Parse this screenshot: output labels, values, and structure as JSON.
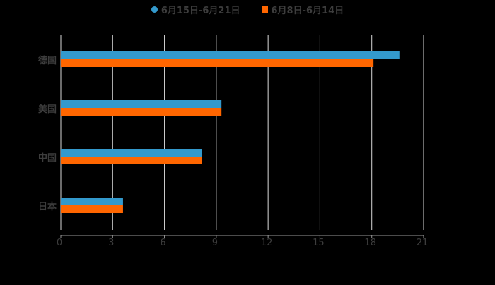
{
  "chart_data": {
    "type": "bar",
    "orientation": "horizontal",
    "title": "",
    "xlabel": "",
    "ylabel": "",
    "categories": [
      "德国",
      "美国",
      "中国",
      "日本"
    ],
    "series": [
      {
        "name": "6月15日-6月21日",
        "color": "#3399cc",
        "values": [
          19.6,
          9.3,
          8.15,
          3.6
        ]
      },
      {
        "name": "6月8日-6月14日",
        "color": "#ff6600",
        "values": [
          18.1,
          9.3,
          8.15,
          3.6
        ]
      }
    ],
    "xlim": [
      0,
      21
    ],
    "xticks": [
      "0",
      "3",
      "6",
      "9",
      "12",
      "15",
      "18",
      "21"
    ],
    "grid": true,
    "legend_position": "top"
  },
  "legend": {
    "items": [
      {
        "label": "6月15日-6月21日",
        "color": "#3399cc",
        "marker": "circle"
      },
      {
        "label": "6月8日-6月14日",
        "color": "#ff6600",
        "marker": "square"
      }
    ]
  }
}
